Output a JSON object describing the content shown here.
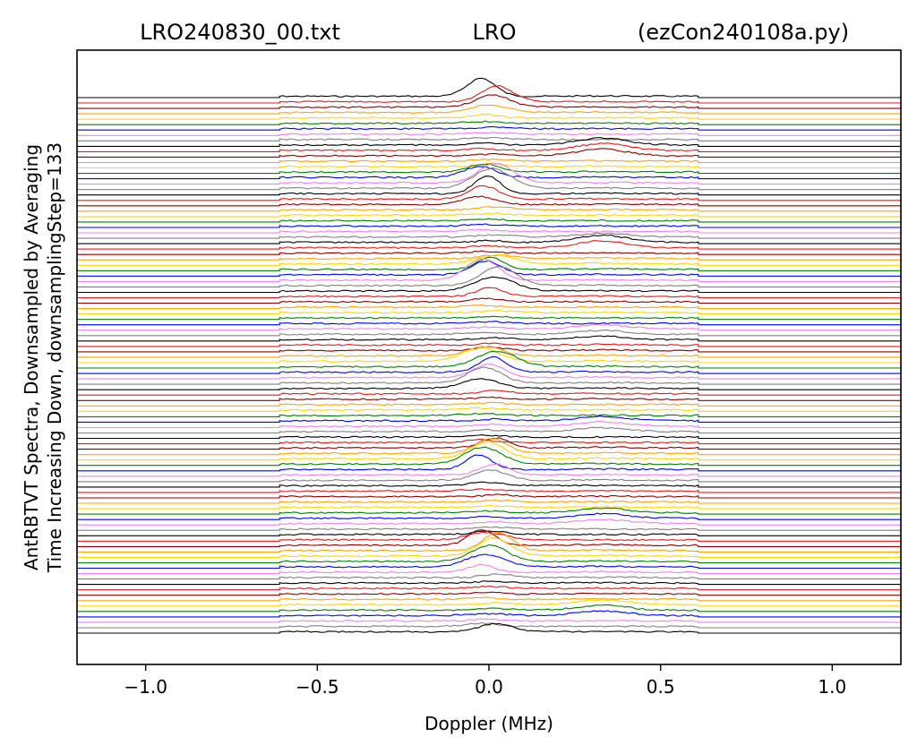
{
  "chart_data": {
    "type": "line",
    "title_left": "LRO240830_00.txt",
    "title_center": "LRO",
    "title_right": "(ezCon240108a.py)",
    "xlabel": "Doppler (MHz)",
    "ylabel_line1": "AntRBTVT Spectra, Downsampled by Averaging",
    "ylabel_line2": "Time Increasing Down, downsamplingStep=133",
    "xlim": [
      -1.2,
      1.2
    ],
    "x_ticks": [
      -1.0,
      -0.5,
      0.0,
      0.5,
      1.0
    ],
    "x_tick_labels": [
      "−1.0",
      "−0.5",
      "0.0",
      "0.5",
      "1.0"
    ],
    "data_x_range": [
      -0.61,
      0.61
    ],
    "y_ticks_shown": false,
    "grid": false,
    "legend": "none",
    "series_count": 100,
    "color_cycle": [
      "#000000",
      "#e41a1c",
      "#8b0000",
      "#ffa500",
      "#ffd700",
      "#008000",
      "#0000ff",
      "#ee82ee",
      "#808080"
    ],
    "peak_center_mhz": 0.0,
    "secondary_peak_mhz": 0.33
  }
}
